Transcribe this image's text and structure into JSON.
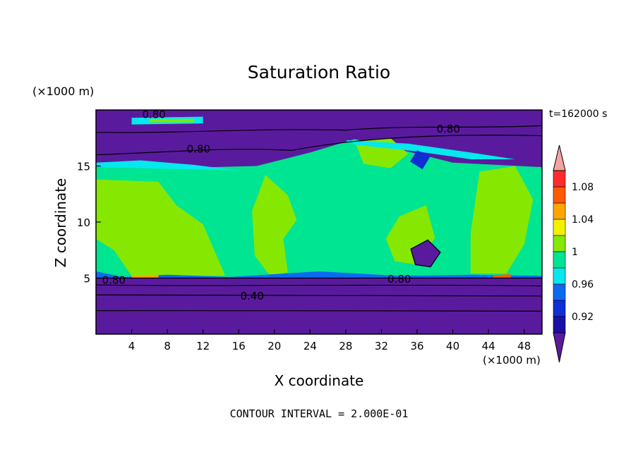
{
  "chart_data": {
    "type": "heatmap",
    "title": "Saturation Ratio",
    "xlabel": "X coordinate",
    "ylabel": "Z coordinate",
    "x_unit_label": "(×1000 m)",
    "z_unit_label": "(×1000 m)",
    "time_label": "t=162000 s",
    "footer": "CONTOUR INTERVAL = 2.000E-01",
    "xlim": [
      0,
      50
    ],
    "ylim": [
      0,
      20
    ],
    "x_ticks": [
      "4",
      "8",
      "12",
      "16",
      "20",
      "24",
      "28",
      "32",
      "36",
      "40",
      "44",
      "48"
    ],
    "y_ticks": [
      "5",
      "10",
      "15"
    ],
    "colorbar": {
      "labels": [
        "0.92",
        "0.96",
        "1",
        "1.04",
        "1.08"
      ],
      "levels": [
        0.9,
        0.92,
        0.94,
        0.96,
        0.98,
        1.0,
        1.02,
        1.04,
        1.06,
        1.08,
        1.1
      ],
      "colors": [
        "#5a1a9e",
        "#1c0fa8",
        "#0d2fd4",
        "#0b6af0",
        "#05e8ec",
        "#00e591",
        "#86e800",
        "#f2f200",
        "#ffa500",
        "#ff5a00",
        "#ff2a2a",
        "#f4a3a3"
      ]
    },
    "contour_labels": [
      {
        "text": "0.80",
        "x": 6.5,
        "z": 19.6
      },
      {
        "text": "0.80",
        "x": 39.5,
        "z": 18.3
      },
      {
        "text": "0.80",
        "x": 11.5,
        "z": 16.5
      },
      {
        "text": "0.80",
        "x": 2.0,
        "z": 4.8
      },
      {
        "text": "0.80",
        "x": 34.0,
        "z": 4.9
      },
      {
        "text": "0.40",
        "x": 17.5,
        "z": 3.4
      }
    ],
    "regions": {
      "bottom_band_z": [
        0,
        5
      ],
      "bottom_band_value": 0.8,
      "lower_line_z": 3.4,
      "lower_line_value": 0.4,
      "moist_layer_z": [
        5,
        15
      ],
      "moist_layer_value": 0.99,
      "dry_top_z": [
        15,
        20
      ],
      "dry_top_value": 0.8
    }
  },
  "colors": {
    "background": "#ffffff",
    "frame": "#000000"
  }
}
